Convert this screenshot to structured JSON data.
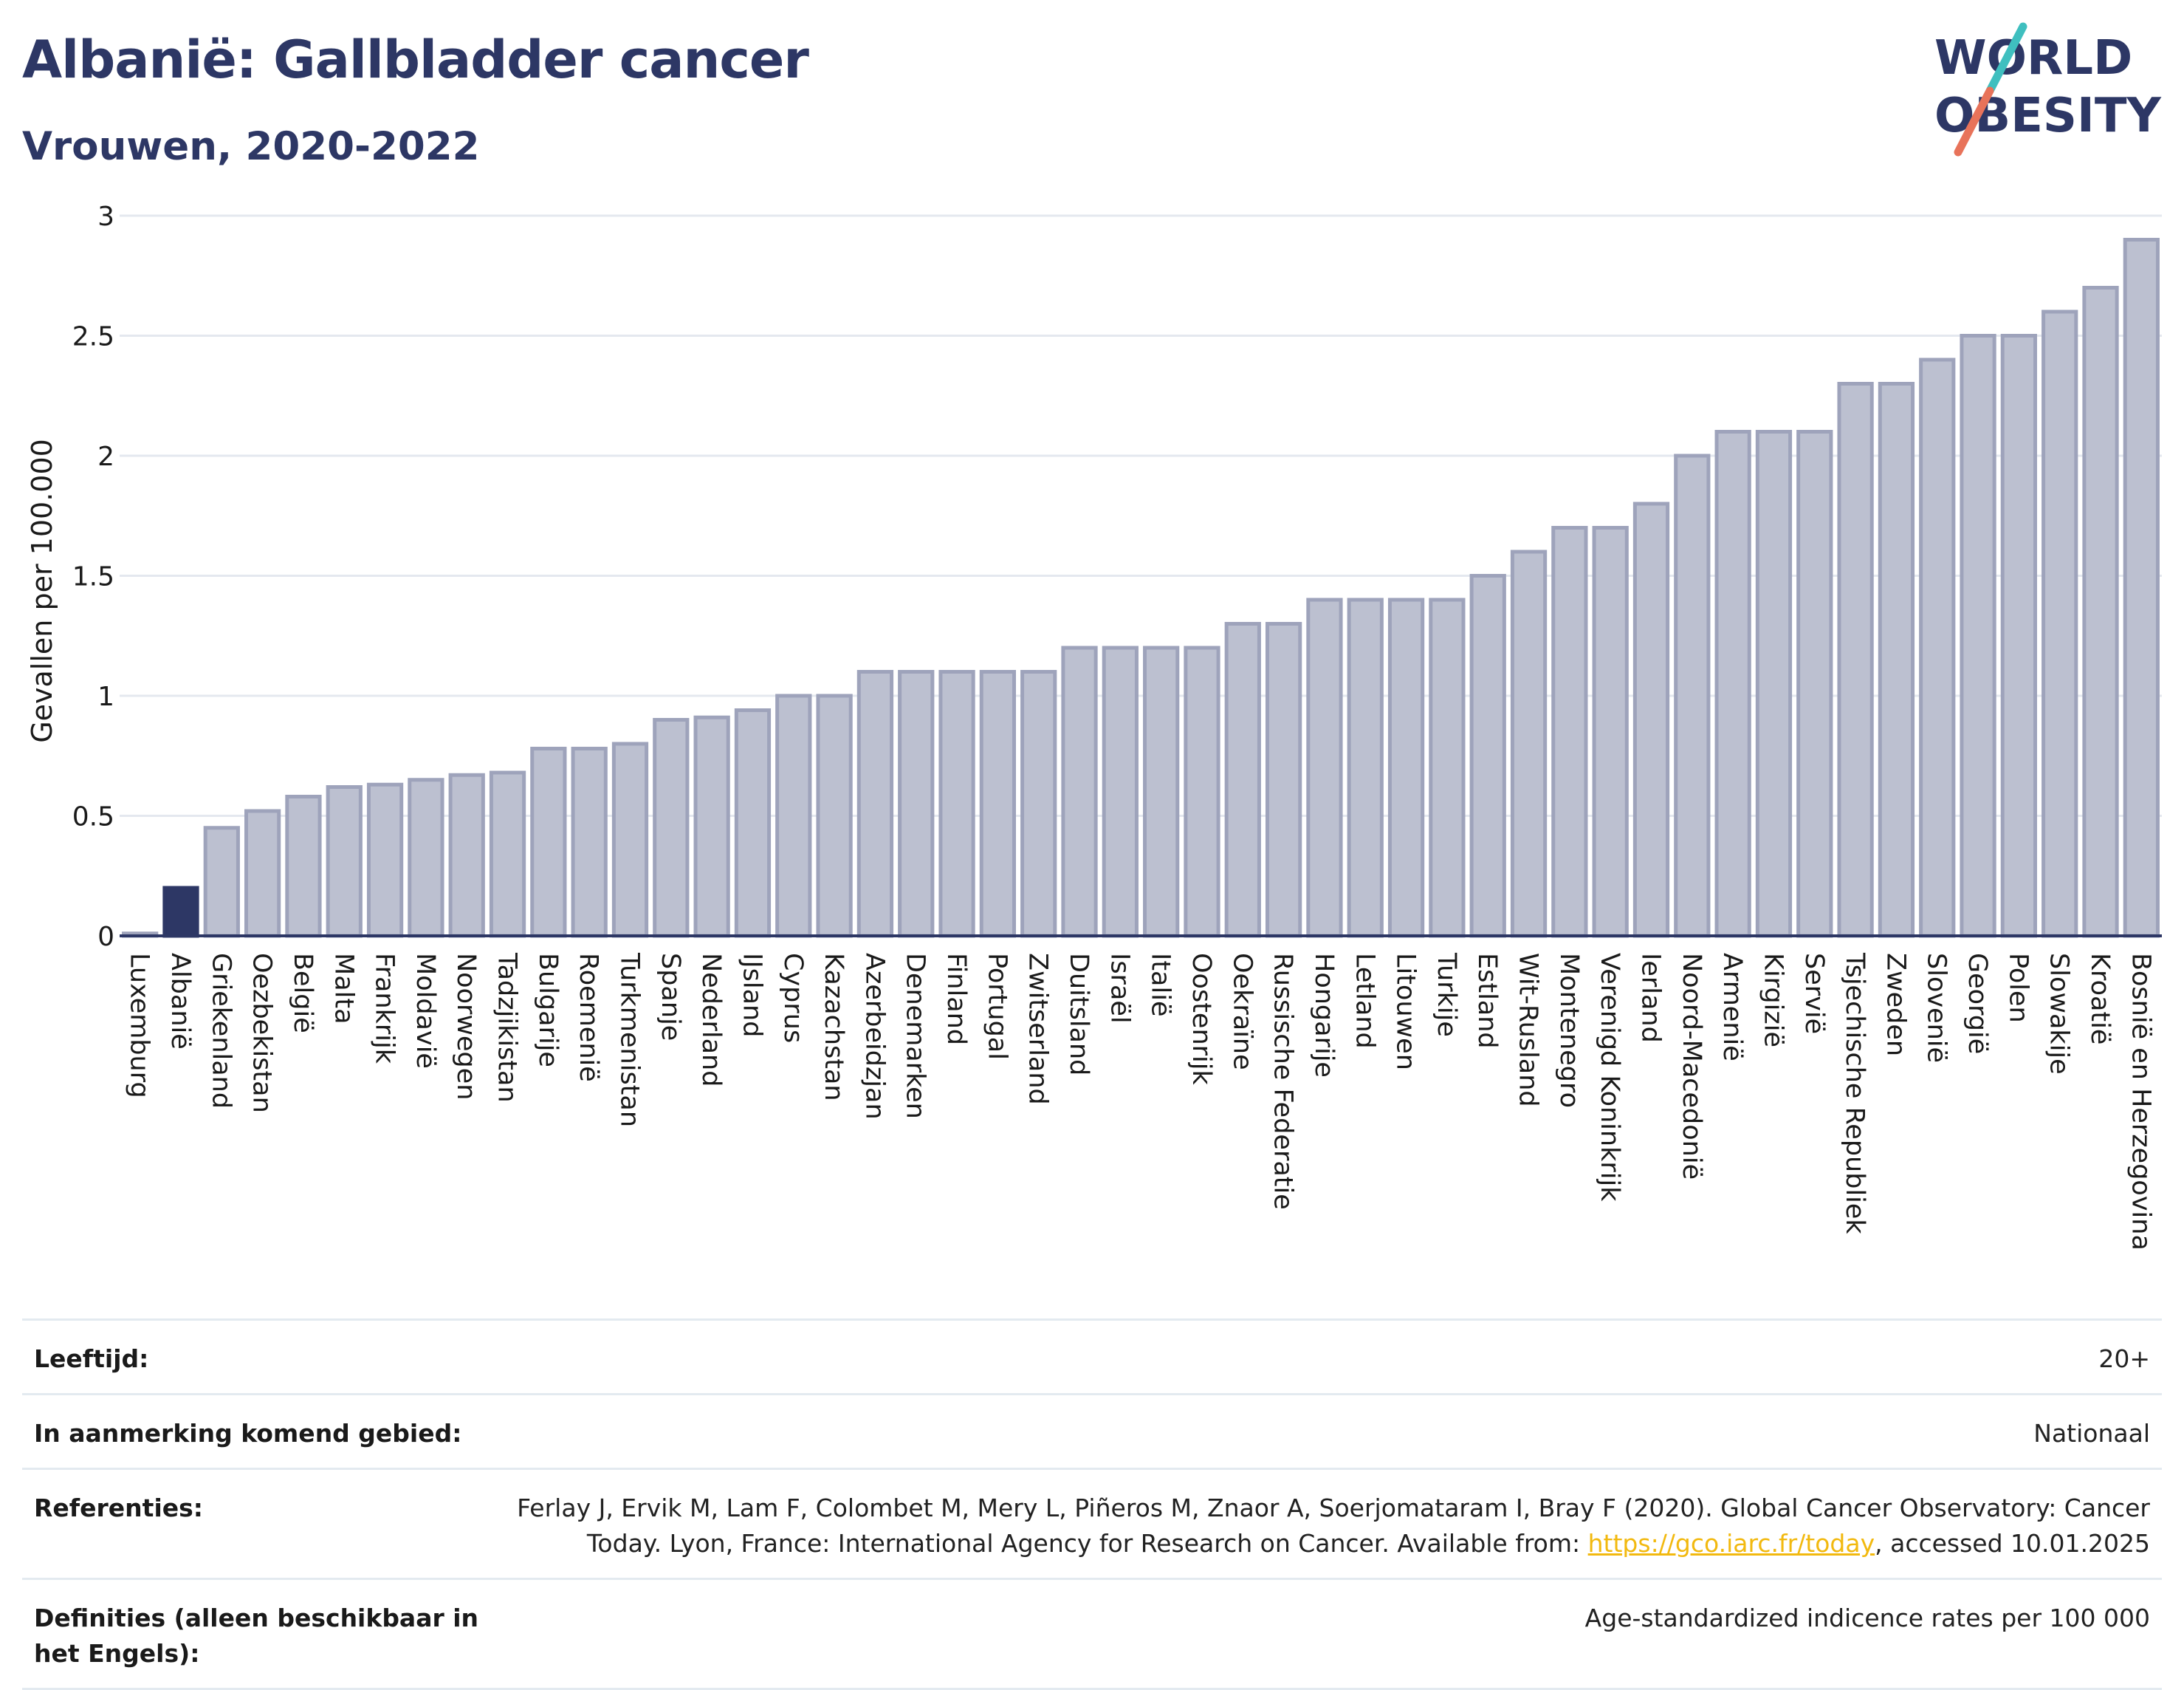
{
  "header": {
    "title": "Albanië: Gallbladder cancer",
    "subtitle": "Vrouwen, 2020-2022"
  },
  "logo": {
    "line1": "WORLD",
    "line2": "OBESITY",
    "colors": {
      "text": "#2d3765",
      "slash_teal": "#3fbfbf",
      "slash_coral": "#e8735a"
    }
  },
  "colors": {
    "bar": "#bcc0d0",
    "bar_stroke": "#9ea3bb",
    "highlight": "#2d3765",
    "grid": "#e4e8ef",
    "axis": "#2d3765"
  },
  "chart_data": {
    "type": "bar",
    "ylabel": "Gevallen per 100.000",
    "ylim": [
      0,
      3
    ],
    "yticks": [
      0,
      0.5,
      1,
      1.5,
      2,
      2.5,
      3
    ],
    "ytick_labels": [
      "0",
      "0.5",
      "1",
      "1.5",
      "2",
      "2.5",
      "3"
    ],
    "grid": true,
    "highlight": "Albanië",
    "categories": [
      "Luxemburg",
      "Albanië",
      "Griekenland",
      "Oezbekistan",
      "België",
      "Malta",
      "Frankrijk",
      "Moldavië",
      "Noorwegen",
      "Tadzjikistan",
      "Bulgarije",
      "Roemenië",
      "Turkmenistan",
      "Spanje",
      "Nederland",
      "IJsland",
      "Cyprus",
      "Kazachstan",
      "Azerbeidzjan",
      "Denemarken",
      "Finland",
      "Portugal",
      "Zwitserland",
      "Duitsland",
      "Israël",
      "Italië",
      "Oostenrijk",
      "Oekraïne",
      "Russische Federatie",
      "Hongarije",
      "Letland",
      "Litouwen",
      "Turkije",
      "Estland",
      "Wit-Rusland",
      "Montenegro",
      "Verenigd Koninkrijk",
      "Ierland",
      "Noord-Macedonië",
      "Armenië",
      "Kirgizië",
      "Servië",
      "Tsjechische Republiek",
      "Zweden",
      "Slovenië",
      "Georgië",
      "Polen",
      "Slowakije",
      "Kroatië",
      "Bosnië en Herzegovina"
    ],
    "values": [
      0.01,
      0.2,
      0.45,
      0.52,
      0.58,
      0.62,
      0.63,
      0.65,
      0.67,
      0.68,
      0.78,
      0.78,
      0.8,
      0.9,
      0.91,
      0.94,
      1.0,
      1.0,
      1.1,
      1.1,
      1.1,
      1.1,
      1.1,
      1.2,
      1.2,
      1.2,
      1.2,
      1.3,
      1.3,
      1.4,
      1.4,
      1.4,
      1.4,
      1.5,
      1.6,
      1.7,
      1.7,
      1.8,
      2.0,
      2.1,
      2.1,
      2.1,
      2.3,
      2.3,
      2.4,
      2.5,
      2.5,
      2.6,
      2.7,
      2.9
    ]
  },
  "info": {
    "age_label": "Leeftijd:",
    "age_value": "20+",
    "area_label": "In aanmerking komend gebied:",
    "area_value": "Nationaal",
    "ref_label": "Referenties:",
    "ref_text_1": "Ferlay J, Ervik M, Lam F, Colombet M, Mery L, Piñeros M, Znaor A, Soerjomataram I, Bray F (2020). Global Cancer Observatory: Cancer Today. Lyon, France: International Agency for Research on Cancer. Available from: ",
    "ref_link": "https://gco.iarc.fr/today",
    "ref_text_2": ", accessed 10.01.2025",
    "def_label": "Definities (alleen beschikbaar in het Engels):",
    "def_value": "Age-standardized indicence rates per 100 000"
  }
}
